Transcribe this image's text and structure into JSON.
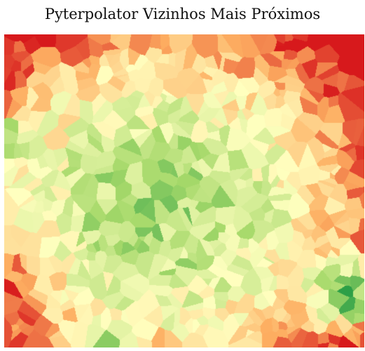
{
  "title": "Pyterpolator Vizinhos Mais Próximos",
  "chart_data": {
    "type": "heatmap",
    "title": "Pyterpolator Vizinhos Mais Próximos",
    "subtype": "nearest-neighbor voronoi interpolation",
    "xlabel": "",
    "ylabel": "",
    "axes_visible": false,
    "grid": false,
    "legend": "none",
    "colormap": "RdYlGn_r",
    "colormap_stops": [
      "#1a9641",
      "#a6d96a",
      "#ffffbf",
      "#fdae61",
      "#d7191c"
    ],
    "value_range": [
      0,
      1
    ]
  }
}
